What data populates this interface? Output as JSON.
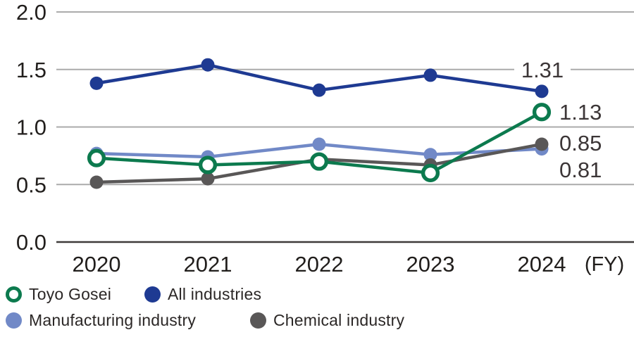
{
  "chart_data": {
    "type": "line",
    "title": "",
    "x_axis": {
      "categories": [
        "2020",
        "2021",
        "2022",
        "2023",
        "2024"
      ],
      "unit_label": "(FY)"
    },
    "y_axis": {
      "ticks": [
        "0.0",
        "0.5",
        "1.0",
        "1.5",
        "2.0"
      ],
      "range": [
        0.0,
        2.0
      ]
    },
    "grid": "horizontal",
    "legend_position": "bottom-left",
    "series": [
      {
        "name": "Toyo Gosei",
        "marker": "open-circle",
        "color": "#0c7a4e",
        "values": [
          0.73,
          0.67,
          0.7,
          0.6,
          1.13
        ]
      },
      {
        "name": "All industries",
        "marker": "filled-circle",
        "color": "#1e3a92",
        "values": [
          1.38,
          1.54,
          1.32,
          1.45,
          1.31
        ]
      },
      {
        "name": "Manufacturing industry",
        "marker": "filled-circle",
        "color": "#7189c7",
        "values": [
          0.77,
          0.74,
          0.85,
          0.76,
          0.81
        ]
      },
      {
        "name": "Chemical industry",
        "marker": "filled-circle",
        "color": "#595757",
        "values": [
          0.52,
          0.55,
          0.72,
          0.67,
          0.85
        ]
      }
    ],
    "end_labels": [
      {
        "text": "1.31",
        "series": "All industries"
      },
      {
        "text": "1.13",
        "series": "Toyo Gosei"
      },
      {
        "text": "0.85",
        "series": "Chemical industry"
      },
      {
        "text": "0.81",
        "series": "Manufacturing industry"
      }
    ],
    "colors": {
      "gridline": "#ababab",
      "axis_line": "#3f3b3a",
      "tick_text": "#211e1c",
      "value_label_text": "#3c3637"
    }
  },
  "legend": {
    "items": [
      {
        "label": "Toyo Gosei"
      },
      {
        "label": "All industries"
      },
      {
        "label": "Manufacturing industry"
      },
      {
        "label": "Chemical industry"
      }
    ]
  }
}
